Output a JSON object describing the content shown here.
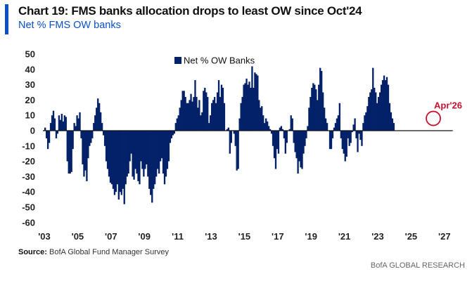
{
  "header": {
    "title": "Chart 19: FMS banks allocation drops to least OW since Oct'24",
    "subtitle": "Net % FMS OW banks"
  },
  "footer": {
    "source_label": "Source:",
    "source_text": " BofA Global Fund Manager Survey",
    "credit": "BofA GLOBAL RESEARCH"
  },
  "colors": {
    "bar": "#022169",
    "accent": "#0a50c8",
    "annotation": "#c8102e"
  },
  "chart_data": {
    "type": "bar",
    "title": "Chart 19: FMS banks allocation drops to least OW since Oct'24",
    "subtitle": "Net % FMS OW banks",
    "xlabel": "",
    "ylabel": "",
    "ylim": [
      -60,
      50
    ],
    "yticks": [
      50,
      40,
      30,
      20,
      10,
      0,
      -10,
      -20,
      -30,
      -40,
      -50,
      -60
    ],
    "xticks": [
      "'03",
      "'05",
      "'07",
      "'09",
      "'11",
      "'13",
      "'15",
      "'17",
      "'19",
      "'21",
      "'23",
      "'25",
      "'27"
    ],
    "xrange": [
      2003,
      2027.5
    ],
    "legend": [
      "Net % OW Banks"
    ],
    "legend_position": "top-center",
    "annotation": {
      "text": "Apr'26",
      "x": 2026.25,
      "y": 8
    },
    "start": "2003-01",
    "frequency": "monthly",
    "series": [
      {
        "name": "Net % OW Banks",
        "values": [
          2,
          -5,
          -12,
          -8,
          5,
          10,
          13,
          8,
          -5,
          -2,
          10,
          7,
          11,
          6,
          10,
          9,
          -20,
          -28,
          -28,
          -27,
          -12,
          5,
          3,
          10,
          8,
          12,
          -5,
          -22,
          -30,
          -26,
          -33,
          -18,
          -10,
          -8,
          -5,
          5,
          10,
          15,
          21,
          18,
          12,
          5,
          -3,
          -10,
          -20,
          -25,
          -30,
          -34,
          -35,
          -38,
          -42,
          -40,
          -35,
          -45,
          -40,
          -42,
          -38,
          -48,
          -35,
          -30,
          -28,
          -20,
          -15,
          -30,
          -32,
          -25,
          -28,
          -33,
          -35,
          -20,
          -25,
          -30,
          -25,
          -22,
          -30,
          -38,
          -42,
          -47,
          -38,
          -35,
          -30,
          -25,
          -28,
          -20,
          -18,
          -28,
          -35,
          -30,
          -25,
          -20,
          -8,
          -5,
          -3,
          -2,
          5,
          8,
          10,
          15,
          20,
          26,
          26,
          22,
          18,
          18,
          20,
          24,
          19,
          22,
          33,
          22,
          15,
          20,
          10,
          12,
          26,
          28,
          25,
          22,
          5,
          10,
          18,
          20,
          22,
          18,
          25,
          33,
          22,
          30,
          28,
          18,
          0,
          1,
          2,
          -15,
          -8,
          0,
          -2,
          -10,
          -26,
          -25,
          8,
          18,
          22,
          30,
          31,
          34,
          30,
          32,
          28,
          42,
          28,
          38,
          37,
          36,
          20,
          15,
          16,
          10,
          5,
          8,
          6,
          3,
          1,
          -2,
          -10,
          -18,
          -25,
          -12,
          -15,
          2,
          3,
          1,
          -5,
          -15,
          -8,
          0,
          1,
          10,
          8,
          -8,
          -14,
          -18,
          -28,
          -20,
          -24,
          -25,
          -15,
          -10,
          -5,
          3,
          15,
          22,
          28,
          31,
          30,
          27,
          20,
          30,
          41,
          39,
          25,
          15,
          8,
          5,
          0,
          -12,
          -12,
          -5,
          2,
          5,
          8,
          10,
          18,
          -5,
          -12,
          -15,
          -20,
          -17,
          -5,
          -10,
          -8,
          -1,
          4,
          8,
          -5,
          -14,
          -2,
          -6,
          -10,
          5,
          10,
          12,
          16,
          22,
          25,
          27,
          41,
          28,
          25,
          18,
          22,
          25,
          30,
          33,
          36,
          33,
          35,
          30,
          18,
          12,
          8,
          5
        ]
      }
    ]
  }
}
